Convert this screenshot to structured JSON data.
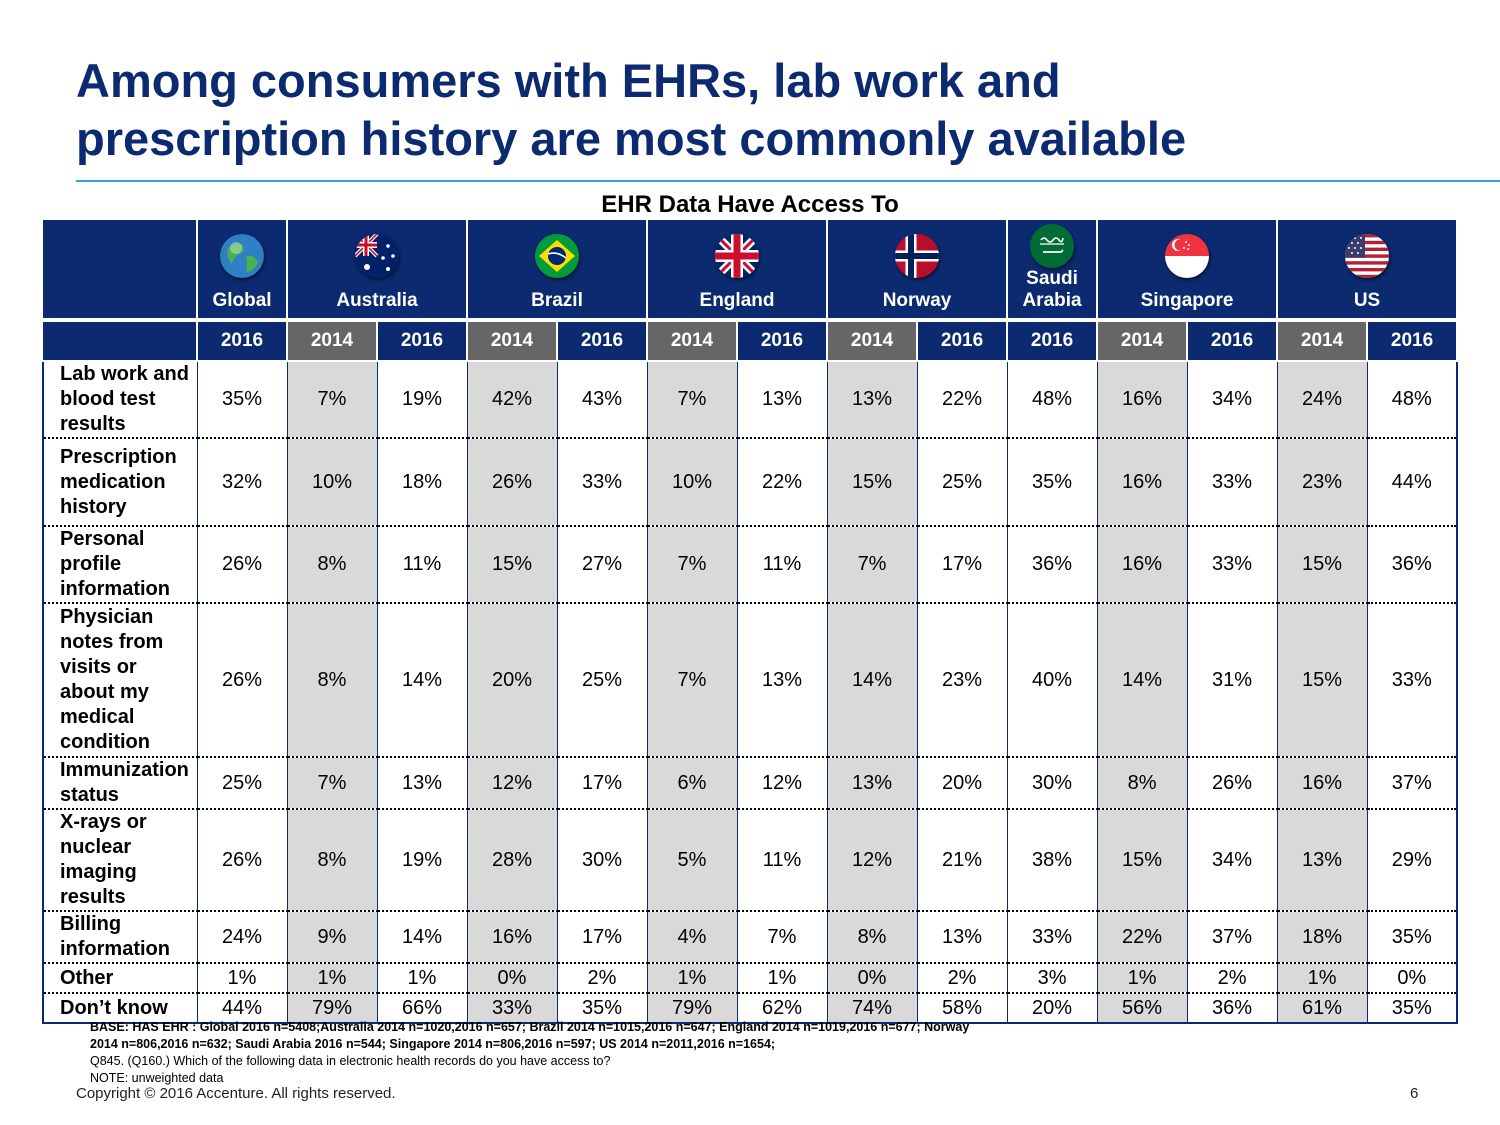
{
  "title": {
    "line1": "Among consumers with EHRs, lab work and",
    "line2": "prescription history are most commonly available"
  },
  "chart_data": {
    "type": "table",
    "title": "EHR Data Have Access To",
    "countries": [
      {
        "name": "Global",
        "flag": "globe-icon",
        "years": [
          "2016"
        ]
      },
      {
        "name": "Australia",
        "flag": "australia-flag-icon",
        "years": [
          "2014",
          "2016"
        ]
      },
      {
        "name": "Brazil",
        "flag": "brazil-flag-icon",
        "years": [
          "2014",
          "2016"
        ]
      },
      {
        "name": "England",
        "flag": "uk-flag-icon",
        "years": [
          "2014",
          "2016"
        ]
      },
      {
        "name": "Norway",
        "flag": "norway-flag-icon",
        "years": [
          "2014",
          "2016"
        ]
      },
      {
        "name": "Saudi Arabia",
        "flag": "saudi-arabia-flag-icon",
        "years": [
          "2016"
        ]
      },
      {
        "name": "Singapore",
        "flag": "singapore-flag-icon",
        "years": [
          "2014",
          "2016"
        ]
      },
      {
        "name": "US",
        "flag": "us-flag-icon",
        "years": [
          "2014",
          "2016"
        ]
      }
    ],
    "rows": [
      {
        "label": "Lab work and blood test results",
        "values": [
          "35%",
          "7%",
          "19%",
          "42%",
          "43%",
          "7%",
          "13%",
          "13%",
          "22%",
          "48%",
          "16%",
          "34%",
          "24%",
          "48%"
        ]
      },
      {
        "label": "Prescription medication history",
        "values": [
          "32%",
          "10%",
          "18%",
          "26%",
          "33%",
          "10%",
          "22%",
          "15%",
          "25%",
          "35%",
          "16%",
          "33%",
          "23%",
          "44%"
        ]
      },
      {
        "label": "Personal profile information",
        "values": [
          "26%",
          "8%",
          "11%",
          "15%",
          "27%",
          "7%",
          "11%",
          "7%",
          "17%",
          "36%",
          "16%",
          "33%",
          "15%",
          "36%"
        ]
      },
      {
        "label": "Physician notes from visits or about my medical condition",
        "values": [
          "26%",
          "8%",
          "14%",
          "20%",
          "25%",
          "7%",
          "13%",
          "14%",
          "23%",
          "40%",
          "14%",
          "31%",
          "15%",
          "33%"
        ]
      },
      {
        "label": "Immunization status",
        "values": [
          "25%",
          "7%",
          "13%",
          "12%",
          "17%",
          "6%",
          "12%",
          "13%",
          "20%",
          "30%",
          "8%",
          "26%",
          "16%",
          "37%"
        ]
      },
      {
        "label": "X-rays or nuclear imaging results",
        "values": [
          "26%",
          "8%",
          "19%",
          "28%",
          "30%",
          "5%",
          "11%",
          "12%",
          "21%",
          "38%",
          "15%",
          "34%",
          "13%",
          "29%"
        ]
      },
      {
        "label": "Billing information",
        "values": [
          "24%",
          "9%",
          "14%",
          "16%",
          "17%",
          "4%",
          "7%",
          "8%",
          "13%",
          "33%",
          "22%",
          "37%",
          "18%",
          "35%"
        ]
      },
      {
        "label": "Other",
        "values": [
          "1%",
          "1%",
          "1%",
          "0%",
          "2%",
          "1%",
          "1%",
          "0%",
          "2%",
          "3%",
          "1%",
          "2%",
          "1%",
          "0%"
        ]
      },
      {
        "label": "Don’t know",
        "values": [
          "44%",
          "79%",
          "66%",
          "33%",
          "35%",
          "79%",
          "62%",
          "74%",
          "58%",
          "20%",
          "56%",
          "36%",
          "61%",
          "35%"
        ]
      }
    ],
    "colors": {
      "header": "#0b2a6f",
      "year_2014": "#666666",
      "shade_2014": "#d9d9d9"
    }
  },
  "notes": {
    "base_line1": "BASE: HAS EHR : Global 2016 n=5408;Australia  2014 n=1020,2016 n=657; Brazil  2014 n=1015,2016 n=647; England  2014 n=1019,2016 n=677; Norway",
    "base_line2": "2014 n=806,2016 n=632; Saudi Arabia 2016 n=544; Singapore  2014 n=806,2016 n=597; US  2014 n=2011,2016 n=1654;",
    "question": "Q845. (Q160.)  Which of the following data in electronic health records do you have access to?",
    "note": "NOTE: unweighted data"
  },
  "footer": {
    "copyright": "Copyright © 2016 Accenture. All rights reserved.",
    "page": "6"
  }
}
